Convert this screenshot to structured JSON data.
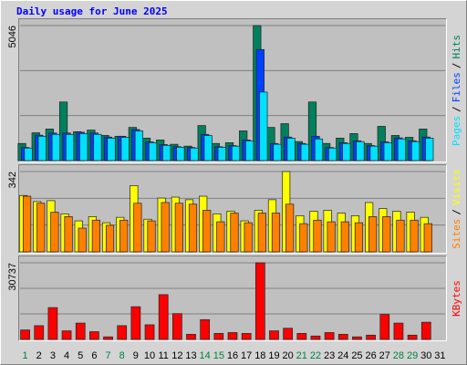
{
  "title": "Daily usage for June 2025",
  "chart_data": [
    {
      "type": "bar",
      "ylim": [
        0,
        5046
      ],
      "yticks": [
        5046
      ],
      "grid": true,
      "legend_separator": "/",
      "series": [
        {
          "name": "Hits",
          "color": "#00805c",
          "values": [
            640,
            1040,
            1180,
            2190,
            1080,
            1140,
            940,
            910,
            1240,
            840,
            770,
            610,
            540,
            1310,
            640,
            670,
            1110,
            5046,
            1240,
            1380,
            710,
            2190,
            640,
            840,
            1010,
            640,
            1280,
            940,
            870,
            1180,
            0
          ]
        },
        {
          "name": "Files",
          "color": "#0040ff",
          "values": [
            490,
            950,
            1030,
            1030,
            1060,
            1030,
            880,
            910,
            1160,
            700,
            600,
            520,
            490,
            980,
            520,
            560,
            770,
            4150,
            640,
            880,
            640,
            910,
            490,
            670,
            740,
            560,
            700,
            850,
            740,
            880,
            0
          ]
        },
        {
          "name": "Pages",
          "color": "#00e0ff",
          "values": [
            470,
            910,
            980,
            980,
            1010,
            980,
            840,
            870,
            1110,
            670,
            570,
            500,
            470,
            940,
            500,
            540,
            740,
            2560,
            610,
            840,
            610,
            810,
            470,
            640,
            710,
            540,
            670,
            810,
            710,
            840,
            0
          ]
        }
      ]
    },
    {
      "type": "bar",
      "ylim": [
        0,
        342
      ],
      "yticks": [
        342
      ],
      "grid": true,
      "legend_separator": "/",
      "series": [
        {
          "name": "Visits",
          "color": "#ffff00",
          "values": [
            240,
            214,
            218,
            162,
            132,
            150,
            124,
            147,
            282,
            139,
            229,
            233,
            222,
            237,
            162,
            173,
            132,
            177,
            222,
            342,
            154,
            173,
            177,
            165,
            154,
            210,
            184,
            173,
            169,
            147,
            0
          ]
        },
        {
          "name": "Sites",
          "color": "#ff8000",
          "values": [
            237,
            207,
            169,
            150,
            101,
            135,
            113,
            135,
            207,
            132,
            210,
            207,
            203,
            177,
            128,
            165,
            124,
            165,
            165,
            203,
            120,
            135,
            128,
            128,
            124,
            150,
            150,
            135,
            135,
            120,
            0
          ]
        }
      ]
    },
    {
      "type": "bar",
      "ylim": [
        0,
        30737
      ],
      "yticks": [
        30737
      ],
      "grid": true,
      "categories": [
        "1",
        "2",
        "3",
        "4",
        "5",
        "6",
        "7",
        "8",
        "9",
        "10",
        "11",
        "12",
        "13",
        "14",
        "15",
        "16",
        "17",
        "18",
        "19",
        "20",
        "21",
        "22",
        "23",
        "24",
        "25",
        "26",
        "27",
        "28",
        "29",
        "30",
        "31"
      ],
      "category_colors": [
        "#008040",
        "#000000",
        "#000000",
        "#000000",
        "#000000",
        "#000000",
        "#008040",
        "#008040",
        "#000000",
        "#000000",
        "#000000",
        "#000000",
        "#000000",
        "#008040",
        "#008040",
        "#000000",
        "#000000",
        "#000000",
        "#000000",
        "#000000",
        "#008040",
        "#008040",
        "#000000",
        "#000000",
        "#000000",
        "#000000",
        "#000000",
        "#008040",
        "#008040",
        "#000000",
        "#000000"
      ],
      "series": [
        {
          "name": "KBytes",
          "color": "#ff0000",
          "values": [
            3800,
            5530,
            12780,
            3450,
            6560,
            3110,
            1040,
            5530,
            13120,
            5870,
            17960,
            10360,
            2070,
            7940,
            2420,
            2760,
            2420,
            30737,
            3450,
            4490,
            2420,
            1380,
            2760,
            2070,
            1040,
            1730,
            10020,
            6560,
            1730,
            6910,
            0
          ]
        }
      ]
    }
  ]
}
